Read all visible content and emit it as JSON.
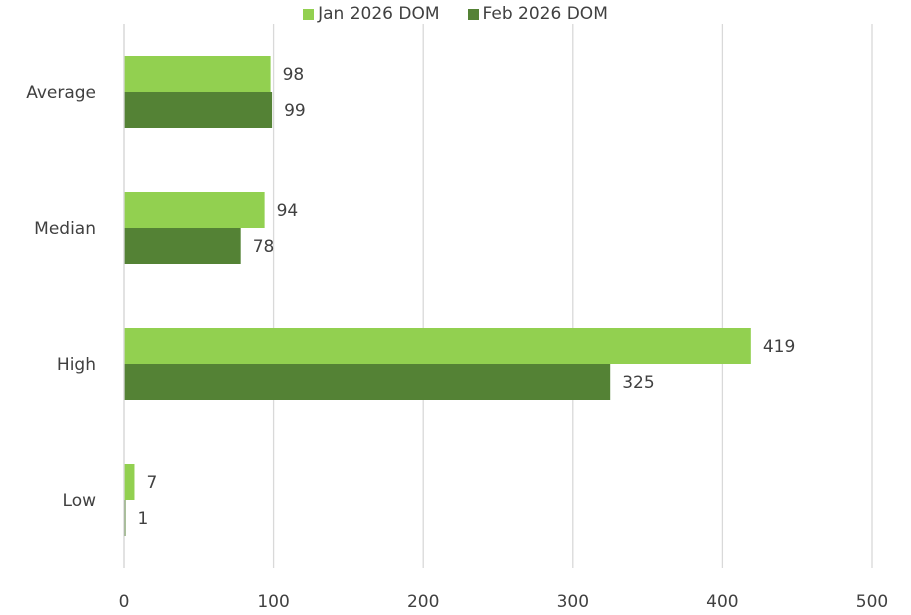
{
  "chart_data": {
    "type": "bar",
    "orientation": "horizontal",
    "categories": [
      "Average",
      "Median",
      "High",
      "Low"
    ],
    "series": [
      {
        "name": "Jan 2026 DOM",
        "values": [
          98,
          94,
          419,
          7
        ],
        "color": "#92d050"
      },
      {
        "name": "Feb 2026 DOM",
        "values": [
          99,
          78,
          325,
          1
        ],
        "color": "#548235"
      }
    ],
    "xlim": [
      0,
      500
    ],
    "xticks": [
      0,
      100,
      200,
      300,
      400,
      500
    ],
    "grid": true,
    "legend": "top-center",
    "title": "",
    "xlabel": "",
    "ylabel": ""
  }
}
